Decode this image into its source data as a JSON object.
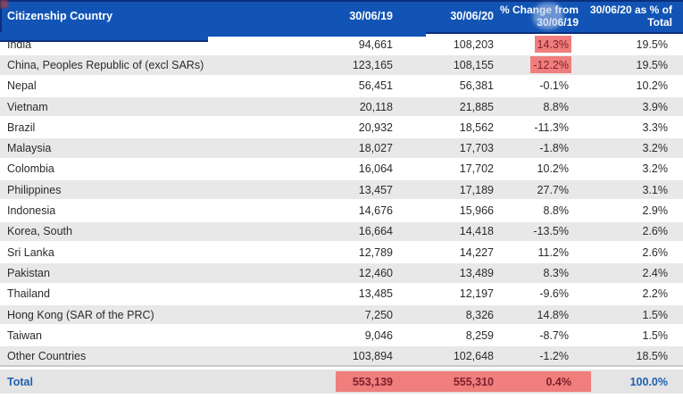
{
  "table": {
    "columns": [
      "Citizenship Country",
      "30/06/19",
      "30/06/20",
      "% Change from 30/06/19",
      "30/06/20 as % of Total"
    ],
    "rows": [
      {
        "country": "India",
        "v2019": "94,661",
        "v2020": "108,203",
        "change": "14.3%",
        "share": "19.5%",
        "change_highlighted": true
      },
      {
        "country": "China, Peoples Republic of (excl SARs)",
        "v2019": "123,165",
        "v2020": "108,155",
        "change": "-12.2%",
        "share": "19.5%",
        "change_highlighted": true
      },
      {
        "country": "Nepal",
        "v2019": "56,451",
        "v2020": "56,381",
        "change": "-0.1%",
        "share": "10.2%",
        "change_highlighted": false
      },
      {
        "country": "Vietnam",
        "v2019": "20,118",
        "v2020": "21,885",
        "change": "8.8%",
        "share": "3.9%",
        "change_highlighted": false
      },
      {
        "country": "Brazil",
        "v2019": "20,932",
        "v2020": "18,562",
        "change": "-11.3%",
        "share": "3.3%",
        "change_highlighted": false
      },
      {
        "country": "Malaysia",
        "v2019": "18,027",
        "v2020": "17,703",
        "change": "-1.8%",
        "share": "3.2%",
        "change_highlighted": false
      },
      {
        "country": "Colombia",
        "v2019": "16,064",
        "v2020": "17,702",
        "change": "10.2%",
        "share": "3.2%",
        "change_highlighted": false
      },
      {
        "country": "Philippines",
        "v2019": "13,457",
        "v2020": "17,189",
        "change": "27.7%",
        "share": "3.1%",
        "change_highlighted": false
      },
      {
        "country": "Indonesia",
        "v2019": "14,676",
        "v2020": "15,966",
        "change": "8.8%",
        "share": "2.9%",
        "change_highlighted": false
      },
      {
        "country": "Korea, South",
        "v2019": "16,664",
        "v2020": "14,418",
        "change": "-13.5%",
        "share": "2.6%",
        "change_highlighted": false
      },
      {
        "country": "Sri Lanka",
        "v2019": "12,789",
        "v2020": "14,227",
        "change": "11.2%",
        "share": "2.6%",
        "change_highlighted": false
      },
      {
        "country": "Pakistan",
        "v2019": "12,460",
        "v2020": "13,489",
        "change": "8.3%",
        "share": "2.4%",
        "change_highlighted": false
      },
      {
        "country": "Thailand",
        "v2019": "13,485",
        "v2020": "12,197",
        "change": "-9.6%",
        "share": "2.2%",
        "change_highlighted": false
      },
      {
        "country": "Hong Kong (SAR of the PRC)",
        "v2019": "7,250",
        "v2020": "8,326",
        "change": "14.8%",
        "share": "1.5%",
        "change_highlighted": false
      },
      {
        "country": "Taiwan",
        "v2019": "9,046",
        "v2020": "8,259",
        "change": "-8.7%",
        "share": "1.5%",
        "change_highlighted": false
      },
      {
        "country": "Other Countries",
        "v2019": "103,894",
        "v2020": "102,648",
        "change": "-1.2%",
        "share": "18.5%",
        "change_highlighted": false
      }
    ],
    "total": {
      "label": "Total",
      "v2019": "553,139",
      "v2020": "555,310",
      "change": "0.4%",
      "share": "100.0%"
    }
  },
  "colors": {
    "header_blue": "#1254b5",
    "header_navy_edge": "#0a2f7d",
    "alt_row_gray": "#e8e8e8",
    "highlight_red": "#ef7e7c",
    "highlight_text_red": "#7d1f2e",
    "total_text_blue": "#1e5fb0",
    "total_row_gray": "#e4e4e4",
    "body_text": "#2b2b2b"
  }
}
